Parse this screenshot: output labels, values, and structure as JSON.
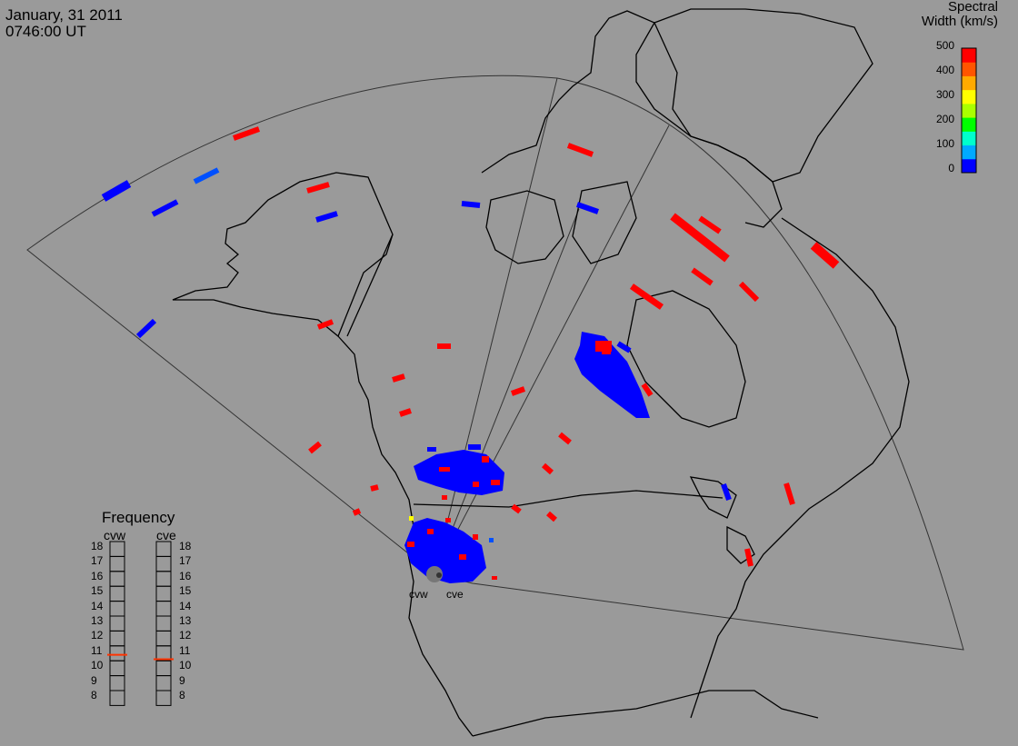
{
  "header": {
    "date": "January, 31 2011",
    "time": "0746:00 UT"
  },
  "colorbar": {
    "title_line1": "Spectral",
    "title_line2": "Width (km/s)",
    "ticks": [
      "500",
      "400",
      "300",
      "200",
      "100",
      "0"
    ],
    "colors": [
      "#0000ff",
      "#00aaff",
      "#00ffcc",
      "#00ff00",
      "#aaff00",
      "#ffff00",
      "#ffaa00",
      "#ff5500",
      "#ff0000"
    ]
  },
  "frequency": {
    "title": "Frequency",
    "radars": [
      {
        "name": "cvw",
        "value_mhz": 10.9
      },
      {
        "name": "cve",
        "value_mhz": 10.6
      }
    ],
    "scale": [
      "18",
      "17",
      "16",
      "15",
      "14",
      "13",
      "12",
      "11",
      "10",
      "9",
      "8"
    ]
  },
  "radar_labels": [
    "cvw",
    "cve"
  ],
  "map_colors": {
    "background": "#9a9a9a",
    "coast": "#000000",
    "fov": "#333333",
    "high": "#ff0000",
    "low": "#0000ff",
    "mid": "#ffff00"
  }
}
